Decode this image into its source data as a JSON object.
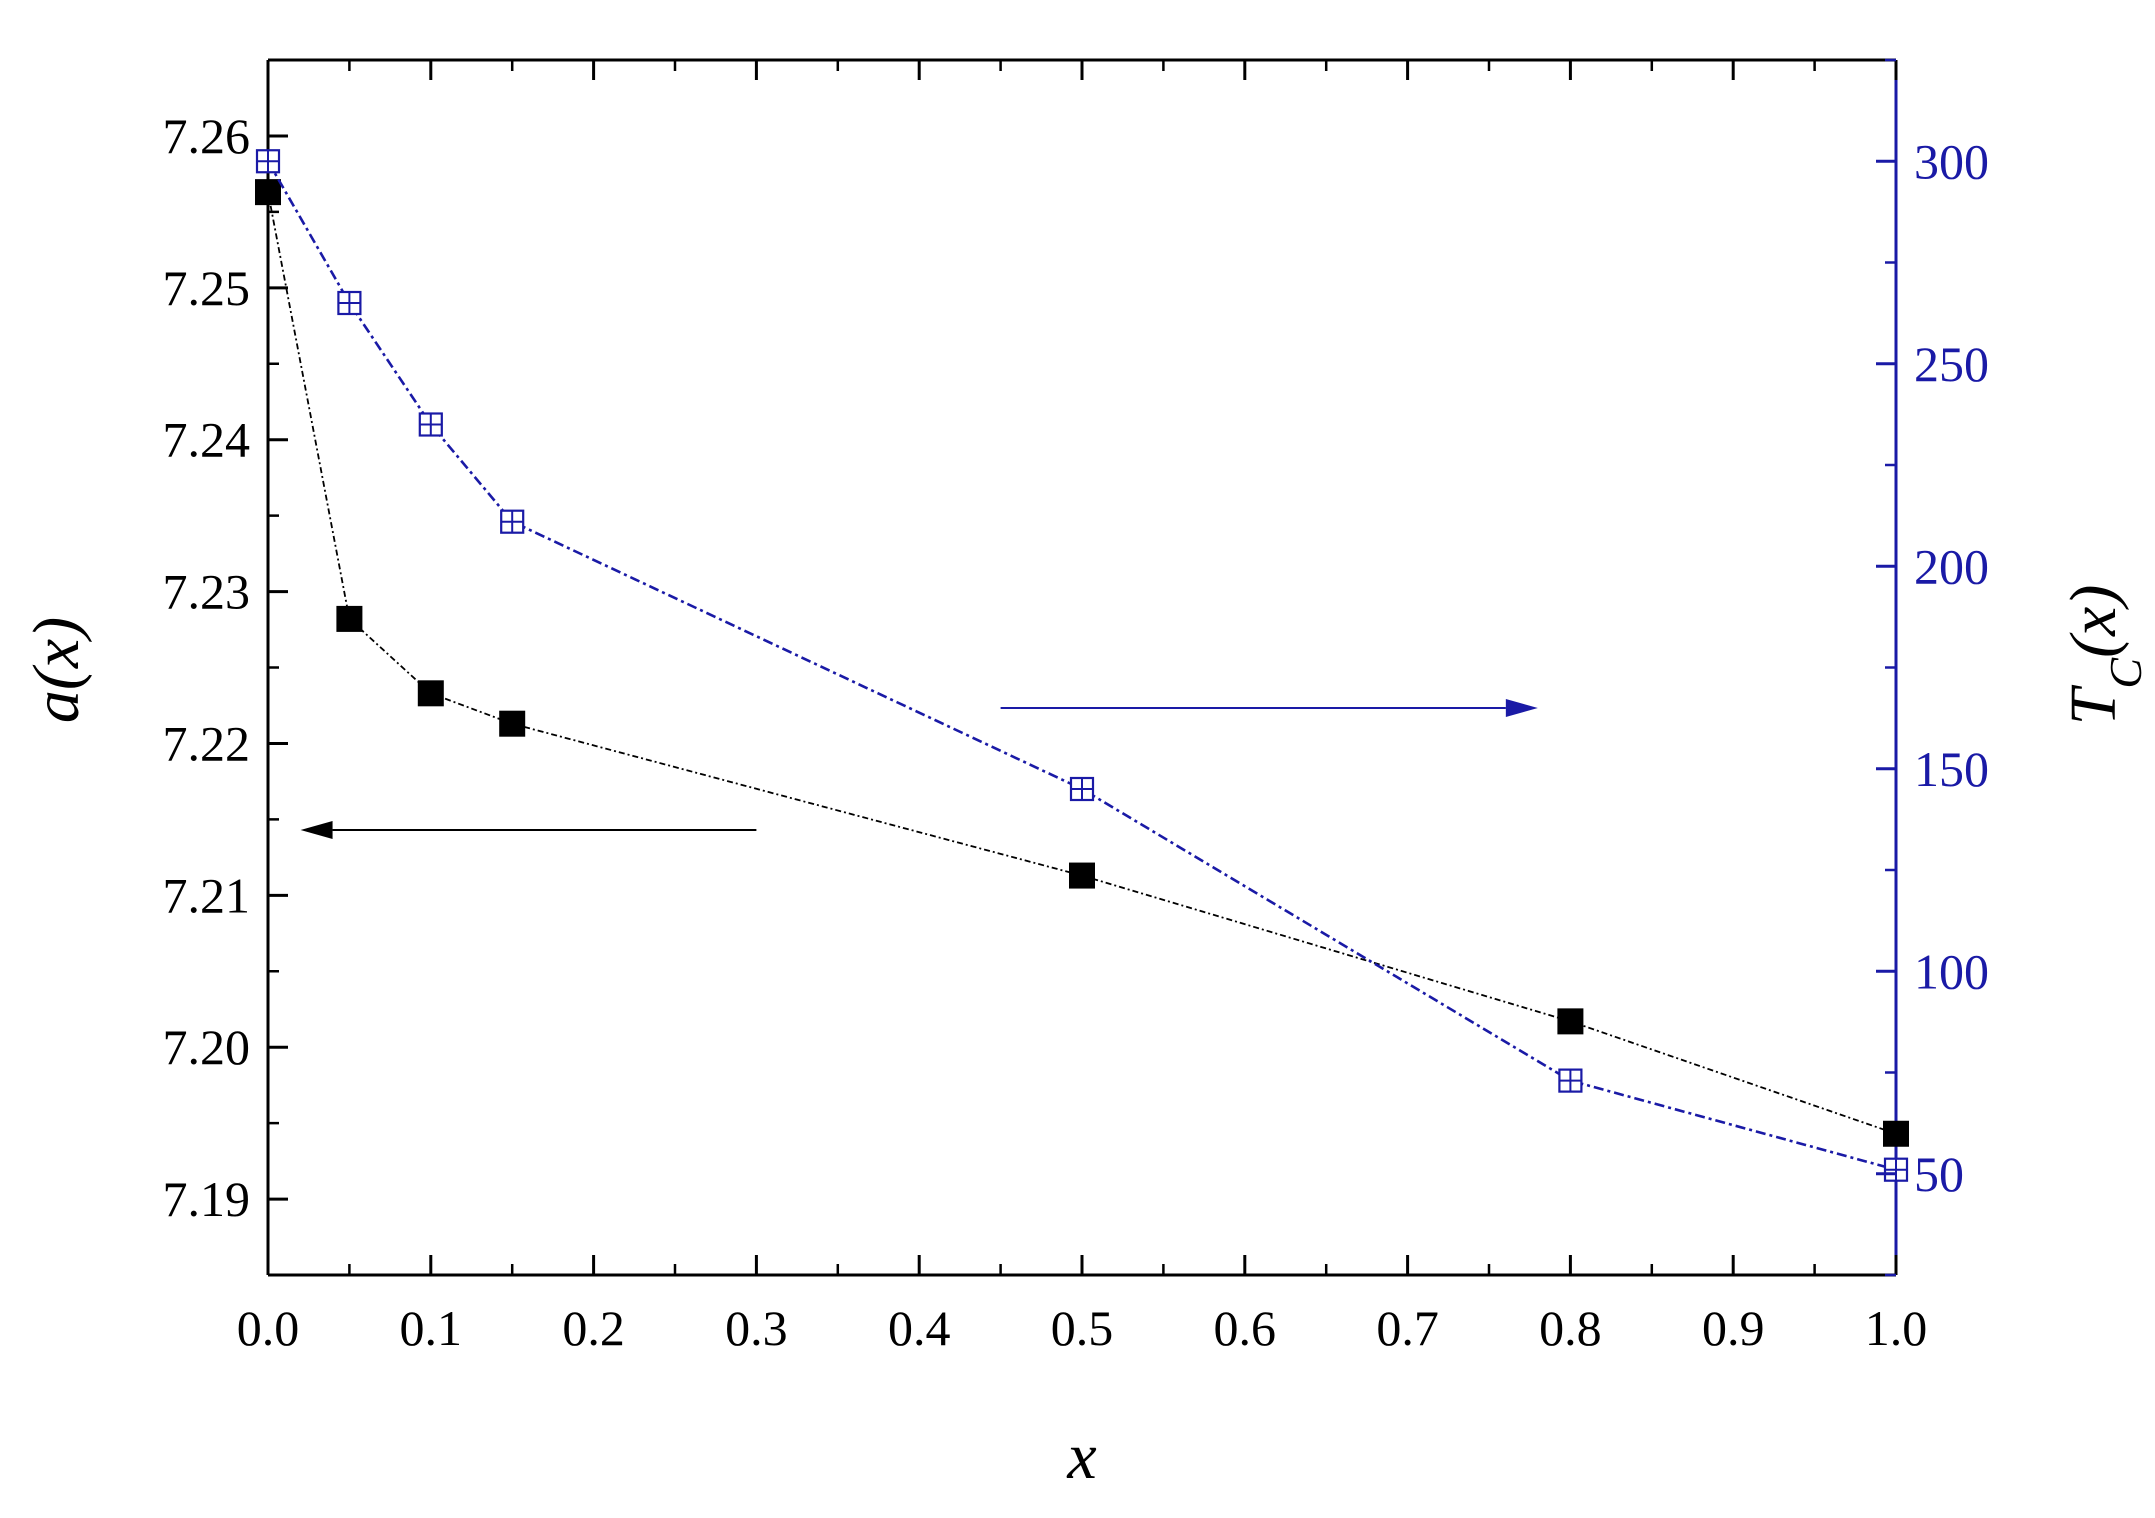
{
  "chart_data": {
    "type": "scatter",
    "xlabel": "x",
    "ylabel_left": "a(x)",
    "ylabel_right_main": "T",
    "ylabel_right_sub": "C",
    "ylabel_right_tail": "(x)",
    "xlim": [
      0.0,
      1.0
    ],
    "ylim_left": [
      7.185,
      7.265
    ],
    "ylim_right": [
      25,
      325
    ],
    "x_ticks": [
      "0.0",
      "0.1",
      "0.2",
      "0.3",
      "0.4",
      "0.5",
      "0.6",
      "0.7",
      "0.8",
      "0.9",
      "1.0"
    ],
    "y_left_ticks": [
      "7.19",
      "7.20",
      "7.21",
      "7.22",
      "7.23",
      "7.24",
      "7.25",
      "7.26"
    ],
    "y_right_ticks": [
      "50",
      "100",
      "150",
      "200",
      "250",
      "300"
    ],
    "grid": false,
    "left_color": "#000000",
    "right_color": "#1a1aa6",
    "series": [
      {
        "axis": "left",
        "marker": "filled-square",
        "color": "#000000",
        "x": [
          0.0,
          0.05,
          0.1,
          0.15,
          0.5,
          0.8,
          1.0
        ],
        "y": [
          7.2563,
          7.2282,
          7.2233,
          7.2213,
          7.2113,
          7.2017,
          7.1943
        ]
      },
      {
        "axis": "right",
        "marker": "crossed-square",
        "color": "#1a1aa6",
        "x": [
          0.0,
          0.05,
          0.1,
          0.15,
          0.5,
          0.8,
          1.0
        ],
        "y": [
          300,
          265,
          235,
          211,
          145,
          73,
          51
        ]
      }
    ],
    "arrows": [
      {
        "direction": "left",
        "axis": "left",
        "color": "#000000",
        "x_from": 0.3,
        "x_to": 0.02,
        "y": 7.2143
      },
      {
        "direction": "right",
        "axis": "right",
        "color": "#1a1aa6",
        "x_from": 0.45,
        "x_to": 0.78,
        "y": 165
      }
    ]
  }
}
